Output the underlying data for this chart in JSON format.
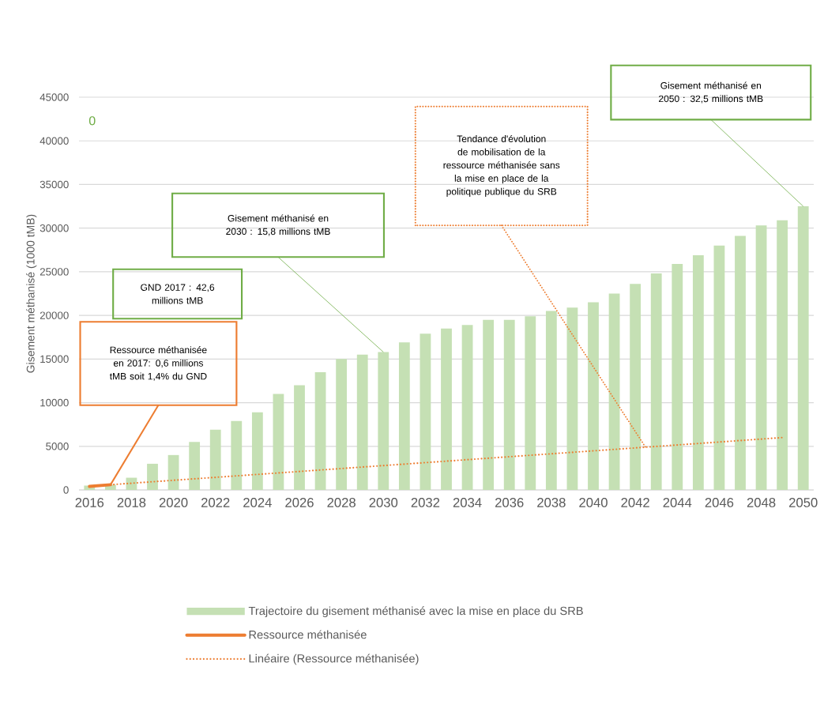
{
  "chart_data": {
    "type": "bar",
    "ylabel": "Gisement méthanisé (1000 tMB)",
    "xlim": [
      2015.5,
      2050.5
    ],
    "xticks": [
      2016,
      2018,
      2020,
      2022,
      2024,
      2026,
      2028,
      2030,
      2032,
      2034,
      2036,
      2038,
      2040,
      2042,
      2044,
      2046,
      2048,
      2050
    ],
    "ylim": [
      0,
      45000
    ],
    "yticks": [
      0,
      5000,
      10000,
      15000,
      20000,
      25000,
      30000,
      35000,
      40000,
      45000
    ],
    "grid": "y",
    "legend": "bottom",
    "series": [
      {
        "name": "Trajectoire du gisement méthanisé avec la mise en place du SRB",
        "color": "#c5e0b4",
        "x": [
          2016,
          2017,
          2018,
          2019,
          2020,
          2021,
          2022,
          2023,
          2024,
          2025,
          2026,
          2027,
          2028,
          2029,
          2030,
          2031,
          2032,
          2033,
          2034,
          2035,
          2036,
          2037,
          2038,
          2039,
          2040,
          2041,
          2042,
          2043,
          2044,
          2045,
          2046,
          2047,
          2048,
          2049,
          2050
        ],
        "values": [
          500,
          600,
          1400,
          3000,
          4000,
          5500,
          6900,
          7900,
          8900,
          11000,
          12000,
          13500,
          15000,
          15500,
          15800,
          16900,
          17900,
          18500,
          18900,
          19500,
          19500,
          19900,
          20500,
          20900,
          21500,
          22500,
          23600,
          24800,
          25900,
          26900,
          28000,
          29100,
          30300,
          30900,
          32500
        ]
      },
      {
        "name": "Ressource méthanisée",
        "type": "line",
        "color": "#ed7d31",
        "x": [
          2016,
          2017
        ],
        "values": [
          400,
          600
        ]
      },
      {
        "name": "Linéaire (Ressource méthanisée)",
        "type": "line",
        "line_style": "dotted",
        "color": "#ed7d31",
        "x": [
          2017,
          2049
        ],
        "values": [
          600,
          6000
        ]
      }
    ],
    "annotations": [
      "Ressource méthanisée en 2017: 0,6 millions tMB soit 1,4% du GND",
      "GND 2017 : 42,6 millions tMB",
      "Gisement méthanisé en 2030 : 15,8 millions tMB",
      "Tendance d'évolution de mobilisation de la ressource méthanisée sans la mise en place de la politique publique du SRB",
      "Gisement méthanisé en 2050 : 32,5 millions tMB",
      "0"
    ]
  }
}
